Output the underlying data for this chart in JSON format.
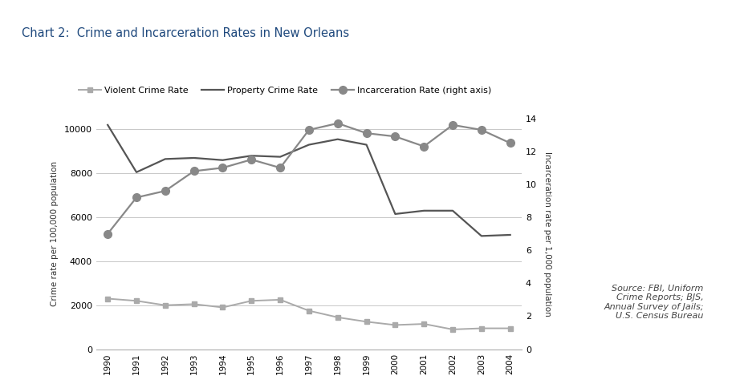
{
  "title": "Chart 2:  Crime and Incarceration Rates in New Orleans",
  "title_bg_color": "#daeef3",
  "title_color": "#1f497d",
  "years": [
    1990,
    1991,
    1992,
    1993,
    1994,
    1995,
    1996,
    1997,
    1998,
    1999,
    2000,
    2001,
    2002,
    2003,
    2004
  ],
  "violent_crime": [
    2300,
    2200,
    2000,
    2050,
    1900,
    2200,
    2250,
    1750,
    1450,
    1250,
    1100,
    1150,
    900,
    950,
    950
  ],
  "property_crime": [
    10200,
    8050,
    8650,
    8700,
    8600,
    8800,
    8750,
    9300,
    9550,
    9300,
    6150,
    6300,
    6300,
    5150,
    5200
  ],
  "incarceration": [
    7.0,
    9.2,
    9.6,
    10.8,
    11.0,
    11.5,
    11.0,
    13.3,
    13.7,
    13.1,
    12.9,
    12.3,
    13.6,
    13.3,
    12.5
  ],
  "ylabel_left": "Crime rate per 100,000 population",
  "ylabel_right": "Incarceration rate per 1,000 population",
  "ylim_left": [
    0,
    10500
  ],
  "ylim_right": [
    0,
    14
  ],
  "yticks_left": [
    0,
    2000,
    4000,
    6000,
    8000,
    10000
  ],
  "yticks_right": [
    0,
    2,
    4,
    6,
    8,
    10,
    12,
    14
  ],
  "violent_color": "#aaaaaa",
  "property_color": "#555555",
  "incarceration_color": "#888888",
  "source_text": "Source: FBI, Uniform\nCrime Reports; BJS,\nAnnual Survey of Jails;\nU.S. Census Bureau",
  "legend_labels": [
    "Violent Crime Rate",
    "Property Crime Rate",
    "Incarceration Rate (right axis)"
  ],
  "fig_width": 9.22,
  "fig_height": 4.84,
  "bg_color": "#ffffff"
}
